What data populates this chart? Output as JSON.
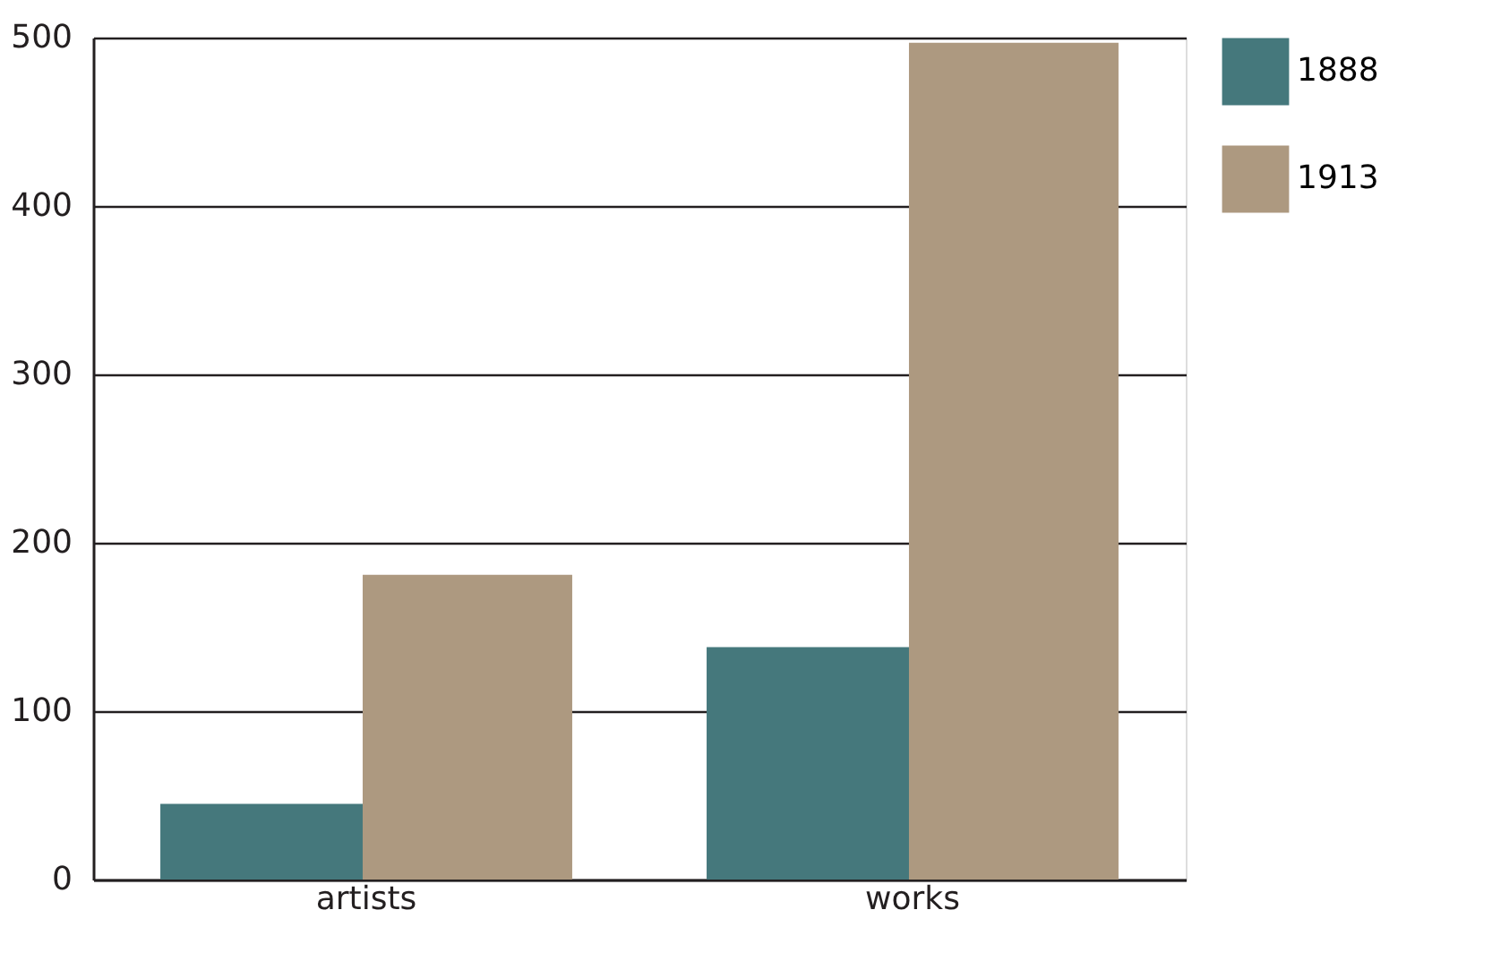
{
  "chart_data": {
    "type": "bar",
    "categories": [
      "artists",
      "works"
    ],
    "series": [
      {
        "name": "1888",
        "color": "#45787c",
        "values": [
          45,
          138
        ]
      },
      {
        "name": "1913",
        "color": "#ad9980",
        "values": [
          181,
          497
        ]
      }
    ],
    "ylim": [
      0,
      500
    ],
    "yticks": [
      0,
      100,
      200,
      300,
      400,
      500
    ],
    "grid": "y",
    "legend": "top right"
  }
}
